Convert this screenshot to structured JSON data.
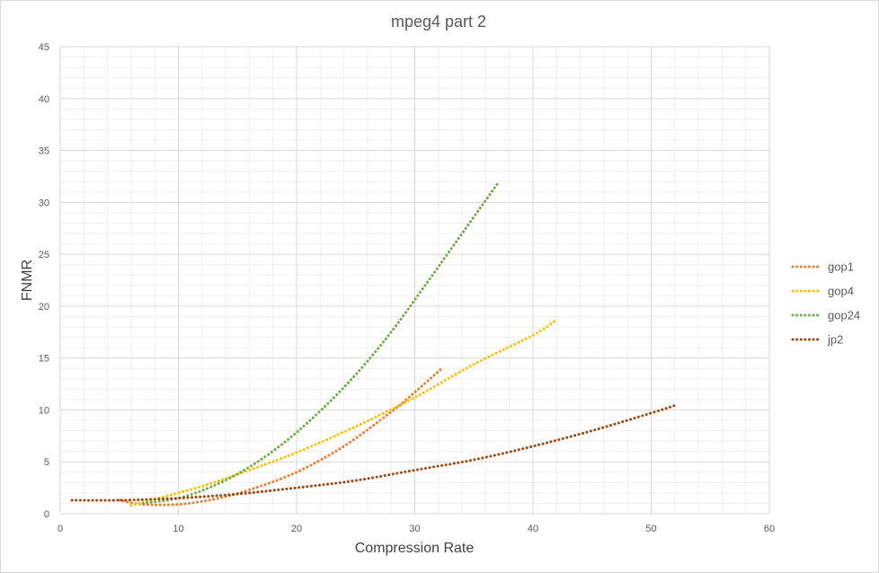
{
  "chart_data": {
    "type": "line",
    "title": "mpeg4 part 2",
    "xlabel": "Compression Rate",
    "ylabel": "FNMR",
    "xlim": [
      0,
      60
    ],
    "ylim": [
      0,
      45
    ],
    "x_ticks": [
      "0",
      "10",
      "20",
      "30",
      "40",
      "50",
      "60"
    ],
    "y_ticks": [
      "0",
      "5",
      "10",
      "15",
      "20",
      "25",
      "30",
      "35",
      "40",
      "45"
    ],
    "grid": true,
    "minor_grid": true,
    "legend_position": "right",
    "line_style": "dotted",
    "series": [
      {
        "name": "gop1",
        "color": "#ed7d31",
        "x": [
          5,
          7,
          10,
          13,
          16,
          20,
          24,
          28,
          30,
          32.2
        ],
        "y": [
          1.3,
          0.9,
          0.9,
          1.4,
          2.3,
          4.0,
          6.5,
          9.8,
          11.7,
          13.9
        ]
      },
      {
        "name": "gop4",
        "color": "#ffc000",
        "x": [
          6,
          8,
          10,
          13,
          16,
          20,
          25,
          30,
          35,
          40,
          42
        ],
        "y": [
          0.8,
          1.4,
          2.0,
          3.0,
          4.2,
          5.9,
          8.4,
          11.2,
          14.4,
          17.2,
          18.7
        ]
      },
      {
        "name": "gop24",
        "color": "#70ad47",
        "x": [
          7,
          10,
          13,
          16,
          19,
          22,
          25,
          28,
          31,
          34,
          37
        ],
        "y": [
          1.0,
          1.5,
          2.7,
          4.5,
          6.9,
          9.9,
          13.4,
          17.5,
          22.2,
          27.0,
          31.8
        ]
      },
      {
        "name": "jp2",
        "color": "#9e480e",
        "x": [
          1,
          5,
          10,
          15,
          20,
          25,
          30,
          35,
          40,
          45,
          50,
          52.2
        ],
        "y": [
          1.3,
          1.3,
          1.5,
          1.9,
          2.5,
          3.2,
          4.2,
          5.2,
          6.5,
          8.0,
          9.7,
          10.5
        ]
      }
    ]
  }
}
